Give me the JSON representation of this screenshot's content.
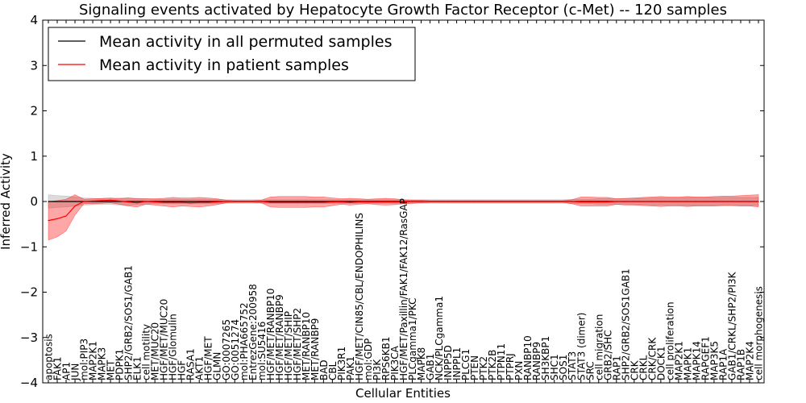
{
  "chart_data": {
    "type": "line",
    "title": "Signaling events activated by Hepatocyte Growth Factor Receptor (c-Met) -- 120 samples",
    "xlabel": "Cellular Entities",
    "ylabel": "Inferred Activity",
    "ylim": [
      -4,
      4
    ],
    "yticks": [
      4,
      3,
      2,
      1,
      0,
      -1,
      -2,
      -3,
      -4
    ],
    "ytick_labels": [
      "4",
      "3",
      "2",
      "1",
      "0",
      "−1",
      "−2",
      "−3",
      "−4"
    ],
    "grid": false,
    "legend_position": "top-left",
    "categories": [
      "apoptosis",
      "FAK1",
      "AP1",
      "JUN",
      "mol:PIP3",
      "MAP2K1",
      "MAPK3",
      "MET",
      "PDPK1",
      "SHP2/GRB2/SOS1/GAB1",
      "ELK1",
      "cell motility",
      "MET/MUC20",
      "HGF/MET/MUC20",
      "HGF/Glomulin",
      "HGF",
      "RASA1",
      "AKT1",
      "HGF/MET",
      "GLMN",
      "GO:0007265",
      "GO:0051274",
      "mol:PHA665752",
      "EntrezGene:200958",
      "mol:SU5416",
      "HGF/MET/RANBP10",
      "HGF/MET/RANBP9",
      "HGF/MET/SHIP",
      "HGF/MET/SHP2",
      "MET/RANBP10",
      "MET/RANBP9",
      "BAD",
      "CBL",
      "PIK3R1",
      "PAK1",
      "HGF/MET/CIN85/CBL/ENDOPHILINS",
      "mol:GDP",
      "PI3K",
      "RPS6KB1",
      "PIK3CA",
      "HGF/MET/Paxillin/FAK1/FAK12/RasGAP",
      "PLCgamma1/PKC",
      "MAPK8",
      "GAB1",
      "NCK/PLCgamma1",
      "INPP5D",
      "INPPL1",
      "PLCG1",
      "PTEN",
      "PTK2",
      "PTK2B",
      "PTPN11",
      "PTPRJ",
      "PXN",
      "RANBP10",
      "RANBP9",
      "SH3KBP1",
      "SHC1",
      "SOS1",
      "STAT3",
      "STAT3 (dimer)",
      "SRC",
      "cell migration",
      "GRB2/SHC",
      "RAP1",
      "SHP2/GRB2/SOS1GAB1",
      "CRK",
      "CRKL",
      "CRK/CRK",
      "DOCK1",
      "cell proliferation",
      "MAP2K1",
      "MAPK1",
      "MAPK14",
      "RAPGEF1",
      "MAP3K5",
      "RAP1A",
      "GAB1/CRKL/SHP2/PI3K",
      "RAP1B",
      "MAP2K4",
      "cell morphogenesis"
    ],
    "series": [
      {
        "name": "Mean activity in all permuted samples",
        "color": "#000000",
        "values": [
          0.0,
          0.0,
          0.0,
          0.0,
          0.0,
          0.0,
          0.0,
          0.0,
          0.0,
          0.0,
          0.0,
          0.0,
          0.0,
          0.0,
          0.0,
          0.0,
          0.0,
          0.0,
          0.0,
          0.0,
          0.0,
          0.0,
          0.0,
          0.0,
          0.0,
          0.0,
          0.0,
          0.0,
          0.0,
          0.0,
          0.0,
          0.0,
          0.0,
          0.0,
          0.0,
          0.0,
          0.0,
          0.0,
          0.0,
          0.0,
          0.0,
          0.0,
          0.0,
          0.0,
          0.0,
          0.0,
          0.0,
          0.0,
          0.0,
          0.0,
          0.0,
          0.0,
          0.0,
          0.0,
          0.0,
          0.0,
          0.0,
          0.0,
          0.0,
          0.0,
          0.0,
          0.0,
          0.0,
          0.0,
          0.0,
          0.0,
          0.0,
          0.0,
          0.0,
          0.0,
          0.0,
          0.0,
          0.0,
          0.0,
          0.0,
          0.0,
          0.0,
          0.0,
          0.0,
          0.0,
          0.0
        ],
        "band_lower": [
          -0.15,
          -0.13,
          -0.12,
          -0.1,
          -0.08,
          -0.07,
          -0.06,
          -0.06,
          -0.08,
          -0.08,
          -0.07,
          -0.06,
          -0.05,
          -0.05,
          -0.05,
          -0.05,
          -0.05,
          -0.05,
          -0.05,
          -0.05,
          -0.04,
          -0.04,
          -0.04,
          -0.04,
          -0.04,
          -0.04,
          -0.04,
          -0.04,
          -0.04,
          -0.04,
          -0.04,
          -0.04,
          -0.04,
          -0.04,
          -0.04,
          -0.04,
          -0.04,
          -0.04,
          -0.04,
          -0.04,
          -0.04,
          -0.04,
          -0.04,
          -0.04,
          -0.04,
          -0.04,
          -0.04,
          -0.04,
          -0.04,
          -0.04,
          -0.04,
          -0.04,
          -0.04,
          -0.04,
          -0.04,
          -0.04,
          -0.04,
          -0.04,
          -0.04,
          -0.05,
          -0.05,
          -0.05,
          -0.06,
          -0.06,
          -0.06,
          -0.06,
          -0.07,
          -0.07,
          -0.08,
          -0.08,
          -0.08,
          -0.08,
          -0.09,
          -0.09,
          -0.09,
          -0.09,
          -0.09,
          -0.09,
          -0.09,
          -0.09,
          -0.09
        ],
        "band_upper": [
          0.15,
          0.13,
          0.12,
          0.1,
          0.08,
          0.07,
          0.06,
          0.06,
          0.08,
          0.08,
          0.07,
          0.06,
          0.05,
          0.05,
          0.05,
          0.05,
          0.05,
          0.05,
          0.05,
          0.05,
          0.04,
          0.04,
          0.04,
          0.04,
          0.04,
          0.04,
          0.04,
          0.04,
          0.04,
          0.04,
          0.04,
          0.04,
          0.04,
          0.04,
          0.04,
          0.04,
          0.04,
          0.04,
          0.04,
          0.04,
          0.04,
          0.04,
          0.04,
          0.04,
          0.04,
          0.04,
          0.04,
          0.04,
          0.04,
          0.04,
          0.04,
          0.04,
          0.04,
          0.04,
          0.04,
          0.04,
          0.04,
          0.04,
          0.04,
          0.05,
          0.05,
          0.05,
          0.06,
          0.06,
          0.06,
          0.06,
          0.07,
          0.07,
          0.08,
          0.08,
          0.08,
          0.08,
          0.09,
          0.09,
          0.09,
          0.09,
          0.09,
          0.09,
          0.09,
          0.09,
          0.09
        ]
      },
      {
        "name": "Mean activity in patient samples",
        "color": "#ff0000",
        "values": [
          -0.42,
          -0.38,
          -0.32,
          -0.1,
          0.0,
          0.01,
          0.02,
          0.03,
          0.01,
          -0.01,
          -0.03,
          0.0,
          -0.01,
          -0.02,
          -0.02,
          -0.02,
          -0.03,
          -0.02,
          -0.02,
          -0.01,
          0.0,
          0.0,
          0.0,
          0.0,
          0.0,
          -0.02,
          -0.02,
          -0.02,
          -0.02,
          -0.02,
          -0.02,
          -0.02,
          -0.01,
          -0.01,
          -0.02,
          -0.01,
          -0.01,
          -0.01,
          -0.01,
          -0.01,
          -0.01,
          0.0,
          0.0,
          0.0,
          0.0,
          0.0,
          0.0,
          0.0,
          0.0,
          0.0,
          0.0,
          0.0,
          0.0,
          0.0,
          0.0,
          0.0,
          0.0,
          0.0,
          0.0,
          0.0,
          -0.01,
          -0.01,
          -0.01,
          -0.01,
          0.0,
          0.0,
          0.0,
          0.0,
          0.0,
          0.0,
          0.0,
          0.0,
          0.0,
          0.0,
          0.0,
          0.0,
          0.0,
          0.0,
          0.0,
          0.0,
          0.0
        ],
        "band_lower": [
          -0.85,
          -0.78,
          -0.65,
          -0.3,
          -0.05,
          -0.05,
          -0.04,
          -0.03,
          -0.06,
          -0.1,
          -0.12,
          -0.06,
          -0.08,
          -0.1,
          -0.12,
          -0.1,
          -0.11,
          -0.12,
          -0.1,
          -0.07,
          -0.03,
          -0.02,
          -0.02,
          -0.02,
          -0.03,
          -0.12,
          -0.13,
          -0.13,
          -0.13,
          -0.13,
          -0.12,
          -0.12,
          -0.09,
          -0.06,
          -0.08,
          -0.06,
          -0.05,
          -0.07,
          -0.08,
          -0.07,
          -0.05,
          -0.04,
          -0.03,
          -0.02,
          -0.02,
          -0.02,
          -0.02,
          -0.02,
          -0.02,
          -0.02,
          -0.02,
          -0.02,
          -0.02,
          -0.02,
          -0.02,
          -0.02,
          -0.02,
          -0.02,
          -0.02,
          -0.05,
          -0.1,
          -0.1,
          -0.1,
          -0.1,
          -0.06,
          -0.08,
          -0.08,
          -0.09,
          -0.1,
          -0.11,
          -0.1,
          -0.1,
          -0.11,
          -0.1,
          -0.1,
          -0.1,
          -0.09,
          -0.09,
          -0.1,
          -0.1,
          -0.12
        ],
        "band_upper": [
          0.0,
          0.02,
          0.05,
          0.15,
          0.05,
          0.06,
          0.07,
          0.08,
          0.06,
          0.08,
          0.06,
          0.06,
          0.06,
          0.07,
          0.09,
          0.08,
          0.08,
          0.09,
          0.08,
          0.06,
          0.03,
          0.02,
          0.02,
          0.02,
          0.03,
          0.1,
          0.11,
          0.11,
          0.11,
          0.11,
          0.1,
          0.1,
          0.08,
          0.06,
          0.07,
          0.06,
          0.05,
          0.06,
          0.07,
          0.06,
          0.04,
          0.03,
          0.03,
          0.02,
          0.02,
          0.02,
          0.02,
          0.02,
          0.02,
          0.02,
          0.02,
          0.02,
          0.02,
          0.02,
          0.02,
          0.02,
          0.02,
          0.02,
          0.02,
          0.04,
          0.1,
          0.1,
          0.09,
          0.09,
          0.06,
          0.07,
          0.08,
          0.09,
          0.1,
          0.11,
          0.1,
          0.1,
          0.11,
          0.1,
          0.1,
          0.11,
          0.12,
          0.12,
          0.13,
          0.14,
          0.15
        ]
      }
    ]
  }
}
